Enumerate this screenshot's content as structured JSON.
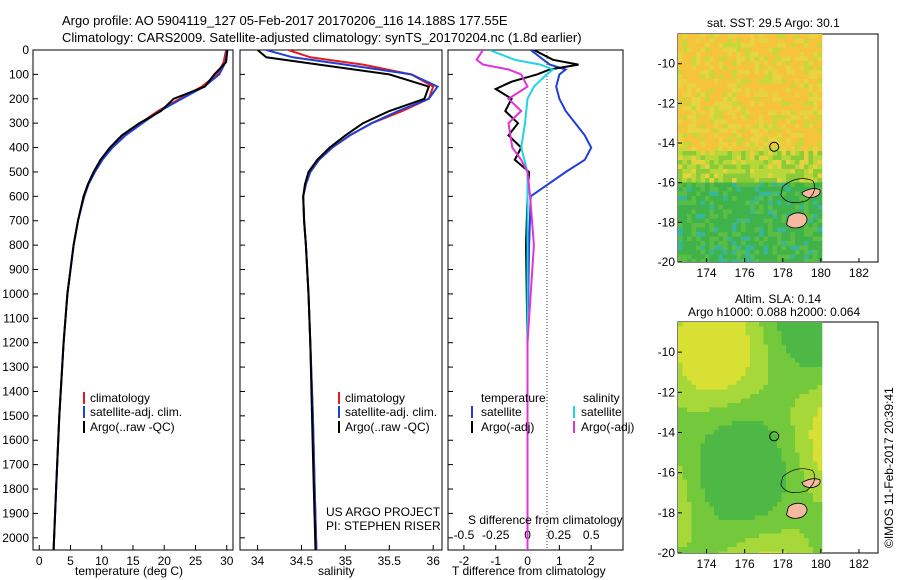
{
  "header": {
    "line1": "Argo profile: AO 5904119_127 05-Feb-2017 20170206_116 14.188S 177.55E",
    "line2": "Climatology: CARS2009. Satellite-adjusted climatology: synTS_20170204.nc (1.8d earlier)"
  },
  "panels": {
    "temperature": {
      "xlabel": "temperature (deg C)"
    },
    "salinity": {
      "xlabel": "salinity",
      "credit1": "US ARGO PROJECT",
      "credit2": "PI: STEPHEN RISER"
    },
    "difference": {
      "top_label": "S difference from climatology",
      "bottom_label": "T difference from climatology",
      "legend_temp_title": "temperature",
      "legend_sal_title": "salinity",
      "legend_items": [
        "satellite",
        "Argo(-adj)",
        "satellite",
        "Argo(-adj)"
      ]
    },
    "legend_profile": [
      "climatology",
      "satellite-adj. clim.",
      "Argo(..raw -QC)"
    ],
    "sst_map": {
      "title": "sat. SST: 29.5 Argo: 30.1"
    },
    "sla_map": {
      "title1": "Altim. SLA: 0.14",
      "title2": "Argo h1000: 0.088 h2000: 0.064"
    }
  },
  "footer_stamp": "©IMOS 11-Feb-2017 20:39:41",
  "colors": {
    "climatology": "#e41a1c",
    "satellite": "#1f3fd6",
    "argo": "#000000",
    "sal_sat": "#22d3e6",
    "sal_argo": "#e034d8"
  },
  "chart_data": [
    {
      "type": "line",
      "xlabel": "temperature (deg C)",
      "xlim": [
        -1,
        31
      ],
      "ylim": [
        2050,
        0
      ],
      "xticks": [
        0,
        5,
        10,
        15,
        20,
        25,
        30
      ],
      "yticks": [
        0,
        100,
        200,
        300,
        400,
        500,
        600,
        700,
        800,
        900,
        1000,
        1100,
        1200,
        1300,
        1400,
        1500,
        1600,
        1700,
        1800,
        1900,
        2000
      ],
      "series": [
        {
          "name": "climatology",
          "depth": [
            0,
            50,
            100,
            150,
            200,
            250,
            300,
            350,
            400,
            450,
            500,
            550,
            600,
            700,
            800,
            900,
            1000,
            1200,
            1500,
            1800,
            2050
          ],
          "values": [
            29.9,
            29.5,
            28.5,
            26.0,
            22.5,
            19.0,
            16.2,
            13.5,
            11.5,
            10.0,
            8.8,
            7.8,
            7.1,
            6.2,
            5.5,
            5.0,
            4.5,
            3.9,
            3.2,
            2.7,
            2.3
          ]
        },
        {
          "name": "satellite-adj. clim.",
          "depth": [
            0,
            50,
            100,
            150,
            200,
            250,
            300,
            350,
            400,
            450,
            500,
            550,
            600,
            700,
            800,
            900,
            1000,
            1200,
            1500,
            1800,
            2050
          ],
          "values": [
            30.0,
            29.8,
            28.8,
            26.4,
            22.8,
            19.3,
            16.5,
            13.8,
            11.7,
            10.1,
            8.9,
            7.9,
            7.2,
            6.2,
            5.5,
            5.0,
            4.5,
            3.9,
            3.2,
            2.7,
            2.3
          ]
        },
        {
          "name": "Argo(..raw -QC)",
          "depth": [
            0,
            50,
            100,
            150,
            200,
            250,
            300,
            350,
            400,
            450,
            500,
            550,
            600,
            700,
            800,
            900,
            1000,
            1200,
            1500,
            1800,
            2050
          ],
          "values": [
            30.1,
            29.9,
            28.0,
            26.5,
            21.5,
            19.5,
            16.0,
            13.2,
            11.3,
            9.8,
            8.7,
            7.8,
            7.1,
            6.2,
            5.5,
            5.0,
            4.5,
            3.9,
            3.2,
            2.7,
            2.3
          ]
        }
      ]
    },
    {
      "type": "line",
      "xlabel": "salinity",
      "xlim": [
        33.8,
        36.1
      ],
      "ylim": [
        2050,
        0
      ],
      "xticks": [
        34,
        34.5,
        35,
        35.5,
        36
      ],
      "series": [
        {
          "name": "climatology",
          "depth": [
            0,
            30,
            60,
            100,
            150,
            200,
            250,
            300,
            350,
            400,
            450,
            500,
            550,
            600,
            700,
            800,
            1000,
            1200,
            1500,
            1800,
            2050
          ],
          "values": [
            34.35,
            34.6,
            35.2,
            35.75,
            36.0,
            35.95,
            35.65,
            35.3,
            35.05,
            34.85,
            34.7,
            34.6,
            34.55,
            34.52,
            34.53,
            34.55,
            34.58,
            34.6,
            34.63,
            34.65,
            34.67
          ]
        },
        {
          "name": "satellite-adj. clim.",
          "depth": [
            0,
            30,
            60,
            100,
            150,
            200,
            250,
            300,
            350,
            400,
            450,
            500,
            550,
            600,
            700,
            800,
            1000,
            1200,
            1500,
            1800,
            2050
          ],
          "values": [
            34.1,
            34.4,
            35.0,
            35.75,
            36.05,
            35.95,
            35.6,
            35.3,
            35.05,
            34.85,
            34.7,
            34.6,
            34.55,
            34.52,
            34.53,
            34.55,
            34.58,
            34.6,
            34.63,
            34.65,
            34.67
          ]
        },
        {
          "name": "Argo(..raw -QC)",
          "depth": [
            0,
            30,
            60,
            100,
            150,
            200,
            250,
            300,
            350,
            400,
            450,
            500,
            550,
            600,
            700,
            800,
            1000,
            1200,
            1500,
            1800,
            2050
          ],
          "values": [
            34.0,
            34.1,
            34.7,
            35.5,
            35.95,
            35.9,
            35.5,
            35.2,
            35.0,
            34.82,
            34.68,
            34.58,
            34.54,
            34.52,
            34.53,
            34.55,
            34.58,
            34.6,
            34.62,
            34.64,
            34.66
          ]
        }
      ]
    },
    {
      "type": "line",
      "xlabel": "T difference from climatology",
      "xlim": [
        -2.5,
        3.0
      ],
      "ylim": [
        2050,
        0
      ],
      "xticks": [
        -2,
        -1,
        0,
        1,
        2
      ],
      "x2label": "S difference from climatology",
      "x2ticks": [
        -0.5,
        -0.25,
        0,
        0.25,
        0.5
      ],
      "series": [
        {
          "name": "temperature satellite",
          "depth": [
            0,
            40,
            60,
            80,
            100,
            150,
            200,
            250,
            300,
            350,
            400,
            450,
            500,
            600,
            800,
            1200,
            2050
          ],
          "values": [
            0.1,
            0.5,
            0.7,
            1.2,
            1.0,
            0.9,
            1.0,
            1.2,
            1.5,
            1.8,
            2.0,
            1.8,
            1.2,
            0.1,
            0.05,
            0.0,
            0.0
          ]
        },
        {
          "name": "temperature Argo(-adj)",
          "depth": [
            0,
            40,
            60,
            80,
            100,
            130,
            160,
            200,
            250,
            300,
            350,
            400,
            450,
            500,
            600,
            800,
            1200,
            2050
          ],
          "values": [
            0.2,
            0.8,
            1.6,
            0.7,
            0.3,
            -0.5,
            -1.0,
            -0.5,
            -0.7,
            -0.3,
            -0.6,
            -0.2,
            -0.4,
            0.05,
            0.0,
            -0.05,
            0.0,
            0.0
          ]
        },
        {
          "name": "salinity satellite",
          "depth": [
            0,
            40,
            60,
            80,
            100,
            150,
            200,
            300,
            400,
            500,
            600,
            800,
            1200,
            2050
          ],
          "values": [
            -0.3,
            -0.1,
            0.1,
            0.2,
            0.15,
            0.05,
            0.0,
            -0.02,
            -0.05,
            0.0,
            0.0,
            0.0,
            0.0,
            0.0
          ]
        },
        {
          "name": "salinity Argo(-adj)",
          "depth": [
            0,
            40,
            60,
            80,
            100,
            150,
            200,
            250,
            300,
            400,
            450,
            500,
            600,
            800,
            1200,
            2050
          ],
          "values": [
            -0.35,
            -0.4,
            -0.35,
            -0.15,
            -0.05,
            0.0,
            -0.15,
            -0.05,
            -0.15,
            -0.12,
            -0.05,
            0.0,
            0.02,
            0.05,
            0.0,
            0.0
          ]
        }
      ]
    },
    {
      "type": "heatmap",
      "title": "sat. SST: 29.5 Argo: 30.1",
      "xlim": [
        172.5,
        183
      ],
      "ylim": [
        -20,
        -8.5
      ],
      "xticks": [
        174,
        176,
        178,
        180,
        182
      ],
      "yticks": [
        -10,
        -12,
        -14,
        -16,
        -18,
        -20
      ],
      "argo_position": {
        "lon": 177.55,
        "lat": -14.19
      }
    },
    {
      "type": "heatmap",
      "title": "Altim. SLA: 0.14",
      "subtitle": "Argo h1000: 0.088 h2000: 0.064",
      "xlim": [
        172.5,
        183
      ],
      "ylim": [
        -20,
        -8.5
      ],
      "xticks": [
        174,
        176,
        178,
        180,
        182
      ],
      "yticks": [
        -10,
        -12,
        -14,
        -16,
        -18,
        -20
      ],
      "argo_position": {
        "lon": 177.55,
        "lat": -14.19
      }
    }
  ]
}
